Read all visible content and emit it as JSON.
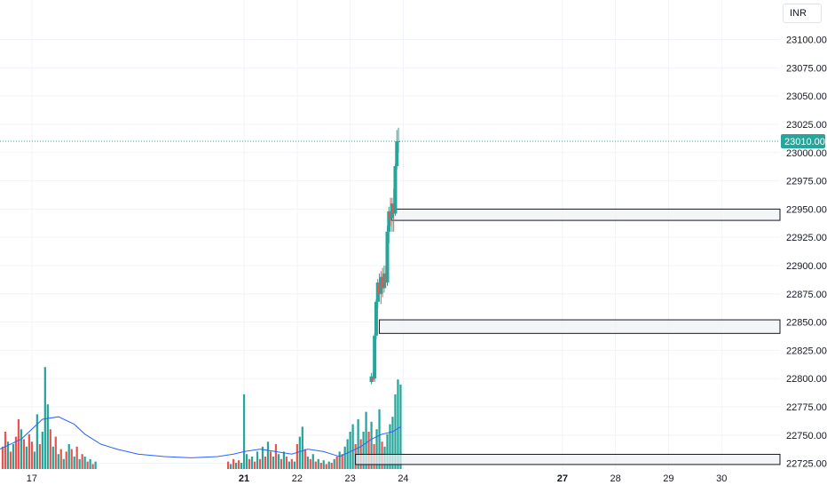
{
  "currency": "INR",
  "colors": {
    "up": "#26a69a",
    "down": "#ef5350",
    "ma": "#2962ff",
    "grid": "#f0f3fa",
    "price_line": "#26a69a",
    "zone_fill": "#f0f1f3",
    "zone_stroke": "#131722"
  },
  "chart_data": {
    "type": "candlestick",
    "ylim": [
      22720,
      23135
    ],
    "y_ticks": [
      22725,
      22750,
      22775,
      22800,
      22825,
      22850,
      22875,
      22900,
      22925,
      22950,
      22975,
      23000,
      23025,
      23050,
      23075,
      23100
    ],
    "y_tick_labels": [
      "22725.00",
      "22750.00",
      "22775.00",
      "22800.00",
      "22825.00",
      "22850.00",
      "22875.00",
      "22900.00",
      "22925.00",
      "22950.00",
      "22975.00",
      "23000.00",
      "23025.00",
      "23050.00",
      "23075.00",
      "23100.00"
    ],
    "x_range": [
      16.4,
      31.1
    ],
    "x_ticks": [
      {
        "x": 17,
        "label": "17",
        "bold": false
      },
      {
        "x": 21,
        "label": "21",
        "bold": true
      },
      {
        "x": 22,
        "label": "22",
        "bold": false
      },
      {
        "x": 23,
        "label": "23",
        "bold": false
      },
      {
        "x": 24,
        "label": "24",
        "bold": false
      },
      {
        "x": 27,
        "label": "27",
        "bold": true
      },
      {
        "x": 28,
        "label": "28",
        "bold": false
      },
      {
        "x": 29,
        "label": "29",
        "bold": false
      },
      {
        "x": 30,
        "label": "30",
        "bold": false
      }
    ],
    "last_price": 23010,
    "last_price_label": "23010.00",
    "zones": [
      {
        "low": 22940,
        "high": 22950,
        "start": 23.78
      },
      {
        "low": 22840,
        "high": 22852,
        "start": 23.55
      },
      {
        "low": 22724,
        "high": 22733,
        "start": 23.1
      }
    ],
    "candles": [
      {
        "x": 23.4,
        "o": 22797,
        "h": 22805,
        "l": 22795,
        "c": 22802
      },
      {
        "x": 23.43,
        "o": 22800,
        "h": 22806,
        "l": 22797,
        "c": 22799
      },
      {
        "x": 23.46,
        "o": 22800,
        "h": 22840,
        "l": 22797,
        "c": 22838
      },
      {
        "x": 23.49,
        "o": 22838,
        "h": 22870,
        "l": 22835,
        "c": 22868
      },
      {
        "x": 23.52,
        "o": 22868,
        "h": 22888,
        "l": 22862,
        "c": 22885
      },
      {
        "x": 23.55,
        "o": 22885,
        "h": 22893,
        "l": 22868,
        "c": 22875
      },
      {
        "x": 23.58,
        "o": 22875,
        "h": 22895,
        "l": 22866,
        "c": 22890
      },
      {
        "x": 23.61,
        "o": 22890,
        "h": 22898,
        "l": 22872,
        "c": 22880
      },
      {
        "x": 23.64,
        "o": 22880,
        "h": 22900,
        "l": 22876,
        "c": 22893
      },
      {
        "x": 23.67,
        "o": 22893,
        "h": 22900,
        "l": 22880,
        "c": 22885
      },
      {
        "x": 23.7,
        "o": 22885,
        "h": 22935,
        "l": 22882,
        "c": 22930
      },
      {
        "x": 23.73,
        "o": 22930,
        "h": 22952,
        "l": 22920,
        "c": 22948
      },
      {
        "x": 23.76,
        "o": 22948,
        "h": 22960,
        "l": 22935,
        "c": 22942
      },
      {
        "x": 23.79,
        "o": 22942,
        "h": 22960,
        "l": 22930,
        "c": 22955
      },
      {
        "x": 23.82,
        "o": 22955,
        "h": 22968,
        "l": 22930,
        "c": 22946
      },
      {
        "x": 23.85,
        "o": 22946,
        "h": 22990,
        "l": 22944,
        "c": 22988
      },
      {
        "x": 23.88,
        "o": 22988,
        "h": 23020,
        "l": 22985,
        "c": 23010
      },
      {
        "x": 23.91,
        "o": 23010,
        "h": 23022,
        "l": 23000,
        "c": 23010
      }
    ],
    "volumes": [
      {
        "x": 16.45,
        "v": 18,
        "up": false
      },
      {
        "x": 16.5,
        "v": 30,
        "up": false
      },
      {
        "x": 16.55,
        "v": 22,
        "up": true
      },
      {
        "x": 16.6,
        "v": 14,
        "up": false
      },
      {
        "x": 16.65,
        "v": 20,
        "up": true
      },
      {
        "x": 16.7,
        "v": 26,
        "up": false
      },
      {
        "x": 16.75,
        "v": 40,
        "up": false
      },
      {
        "x": 16.8,
        "v": 32,
        "up": true
      },
      {
        "x": 16.85,
        "v": 24,
        "up": false
      },
      {
        "x": 16.9,
        "v": 18,
        "up": true
      },
      {
        "x": 16.95,
        "v": 28,
        "up": false
      },
      {
        "x": 17.0,
        "v": 22,
        "up": false
      },
      {
        "x": 17.05,
        "v": 14,
        "up": true
      },
      {
        "x": 17.1,
        "v": 44,
        "up": true
      },
      {
        "x": 17.15,
        "v": 20,
        "up": false
      },
      {
        "x": 17.2,
        "v": 30,
        "up": true
      },
      {
        "x": 17.25,
        "v": 82,
        "up": true
      },
      {
        "x": 17.3,
        "v": 52,
        "up": true
      },
      {
        "x": 17.35,
        "v": 32,
        "up": false
      },
      {
        "x": 17.4,
        "v": 18,
        "up": true
      },
      {
        "x": 17.45,
        "v": 26,
        "up": false
      },
      {
        "x": 17.5,
        "v": 12,
        "up": true
      },
      {
        "x": 17.55,
        "v": 16,
        "up": false
      },
      {
        "x": 17.6,
        "v": 8,
        "up": true
      },
      {
        "x": 17.65,
        "v": 14,
        "up": false
      },
      {
        "x": 17.7,
        "v": 20,
        "up": true
      },
      {
        "x": 17.75,
        "v": 16,
        "up": false
      },
      {
        "x": 17.8,
        "v": 10,
        "up": true
      },
      {
        "x": 17.85,
        "v": 18,
        "up": false
      },
      {
        "x": 17.9,
        "v": 8,
        "up": true
      },
      {
        "x": 17.95,
        "v": 12,
        "up": false
      },
      {
        "x": 18.0,
        "v": 10,
        "up": true
      },
      {
        "x": 18.05,
        "v": 6,
        "up": false
      },
      {
        "x": 18.1,
        "v": 8,
        "up": true
      },
      {
        "x": 18.15,
        "v": 4,
        "up": false
      },
      {
        "x": 18.2,
        "v": 6,
        "up": true
      },
      {
        "x": 20.7,
        "v": 6,
        "up": false
      },
      {
        "x": 20.75,
        "v": 4,
        "up": true
      },
      {
        "x": 20.8,
        "v": 8,
        "up": false
      },
      {
        "x": 20.85,
        "v": 5,
        "up": true
      },
      {
        "x": 20.9,
        "v": 7,
        "up": false
      },
      {
        "x": 20.95,
        "v": 5,
        "up": true
      },
      {
        "x": 21.0,
        "v": 60,
        "up": true
      },
      {
        "x": 21.05,
        "v": 12,
        "up": true
      },
      {
        "x": 21.1,
        "v": 8,
        "up": false
      },
      {
        "x": 21.15,
        "v": 10,
        "up": true
      },
      {
        "x": 21.2,
        "v": 6,
        "up": false
      },
      {
        "x": 21.25,
        "v": 14,
        "up": true
      },
      {
        "x": 21.3,
        "v": 8,
        "up": false
      },
      {
        "x": 21.35,
        "v": 18,
        "up": true
      },
      {
        "x": 21.4,
        "v": 10,
        "up": false
      },
      {
        "x": 21.45,
        "v": 22,
        "up": true
      },
      {
        "x": 21.5,
        "v": 14,
        "up": false
      },
      {
        "x": 21.55,
        "v": 10,
        "up": true
      },
      {
        "x": 21.6,
        "v": 20,
        "up": false
      },
      {
        "x": 21.65,
        "v": 12,
        "up": true
      },
      {
        "x": 21.7,
        "v": 8,
        "up": false
      },
      {
        "x": 21.75,
        "v": 14,
        "up": true
      },
      {
        "x": 21.8,
        "v": 10,
        "up": false
      },
      {
        "x": 21.85,
        "v": 6,
        "up": true
      },
      {
        "x": 21.9,
        "v": 8,
        "up": false
      },
      {
        "x": 21.95,
        "v": 6,
        "up": true
      },
      {
        "x": 22.0,
        "v": 20,
        "up": false
      },
      {
        "x": 22.05,
        "v": 26,
        "up": true
      },
      {
        "x": 22.1,
        "v": 34,
        "up": true
      },
      {
        "x": 22.15,
        "v": 16,
        "up": false
      },
      {
        "x": 22.2,
        "v": 10,
        "up": true
      },
      {
        "x": 22.25,
        "v": 8,
        "up": false
      },
      {
        "x": 22.3,
        "v": 12,
        "up": true
      },
      {
        "x": 22.35,
        "v": 6,
        "up": false
      },
      {
        "x": 22.4,
        "v": 8,
        "up": true
      },
      {
        "x": 22.45,
        "v": 5,
        "up": false
      },
      {
        "x": 22.5,
        "v": 7,
        "up": true
      },
      {
        "x": 22.55,
        "v": 4,
        "up": false
      },
      {
        "x": 22.6,
        "v": 6,
        "up": true
      },
      {
        "x": 22.65,
        "v": 5,
        "up": false
      },
      {
        "x": 22.7,
        "v": 8,
        "up": true
      },
      {
        "x": 22.75,
        "v": 10,
        "up": false
      },
      {
        "x": 22.8,
        "v": 14,
        "up": true
      },
      {
        "x": 22.85,
        "v": 12,
        "up": false
      },
      {
        "x": 22.9,
        "v": 18,
        "up": true
      },
      {
        "x": 22.95,
        "v": 24,
        "up": true
      },
      {
        "x": 23.0,
        "v": 30,
        "up": true
      },
      {
        "x": 23.05,
        "v": 36,
        "up": true
      },
      {
        "x": 23.1,
        "v": 20,
        "up": false
      },
      {
        "x": 23.15,
        "v": 40,
        "up": true
      },
      {
        "x": 23.2,
        "v": 24,
        "up": false
      },
      {
        "x": 23.25,
        "v": 30,
        "up": true
      },
      {
        "x": 23.3,
        "v": 46,
        "up": true
      },
      {
        "x": 23.35,
        "v": 30,
        "up": false
      },
      {
        "x": 23.4,
        "v": 38,
        "up": true
      },
      {
        "x": 23.45,
        "v": 20,
        "up": false
      },
      {
        "x": 23.5,
        "v": 32,
        "up": true
      },
      {
        "x": 23.55,
        "v": 48,
        "up": true
      },
      {
        "x": 23.6,
        "v": 22,
        "up": false
      },
      {
        "x": 23.65,
        "v": 18,
        "up": true
      },
      {
        "x": 23.7,
        "v": 28,
        "up": true
      },
      {
        "x": 23.75,
        "v": 36,
        "up": true
      },
      {
        "x": 23.8,
        "v": 42,
        "up": true
      },
      {
        "x": 23.85,
        "v": 60,
        "up": true
      },
      {
        "x": 23.9,
        "v": 72,
        "up": true
      },
      {
        "x": 23.95,
        "v": 68,
        "up": true
      }
    ],
    "vol_max": 100,
    "ma_series": [
      [
        16.4,
        16
      ],
      [
        16.8,
        24
      ],
      [
        17.2,
        40
      ],
      [
        17.5,
        42
      ],
      [
        17.8,
        36
      ],
      [
        18.0,
        28
      ],
      [
        18.3,
        20
      ],
      [
        18.6,
        16
      ],
      [
        19.0,
        12
      ],
      [
        19.5,
        10
      ],
      [
        20.0,
        9
      ],
      [
        20.5,
        10
      ],
      [
        20.8,
        12
      ],
      [
        21.0,
        14
      ],
      [
        21.3,
        16
      ],
      [
        21.6,
        14
      ],
      [
        21.9,
        12
      ],
      [
        22.2,
        16
      ],
      [
        22.5,
        14
      ],
      [
        22.8,
        10
      ],
      [
        23.0,
        14
      ],
      [
        23.2,
        18
      ],
      [
        23.4,
        24
      ],
      [
        23.6,
        28
      ],
      [
        23.8,
        30
      ],
      [
        23.95,
        34
      ]
    ]
  }
}
